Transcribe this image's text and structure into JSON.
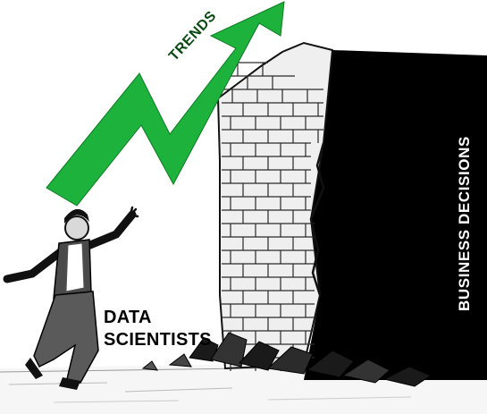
{
  "labels": {
    "trends": "TRENDS",
    "group_line1": "DATA",
    "group_line2": "SCIENTISTS",
    "wall_label": "BUSINESS DECISIONS"
  },
  "colors": {
    "arrow": "#1db23c",
    "wall_face": "#f0f0f0",
    "shadow": "#000000",
    "ink": "#111111"
  }
}
